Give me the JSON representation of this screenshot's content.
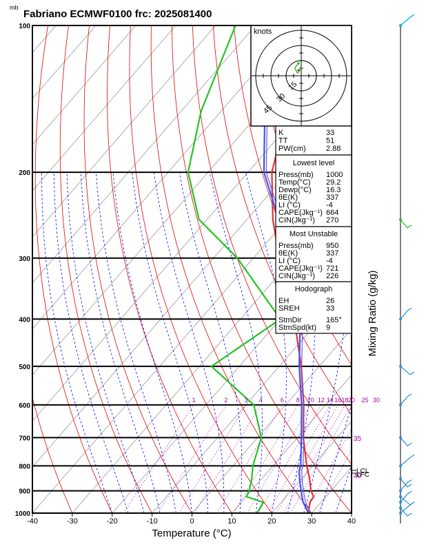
{
  "header": {
    "unit_mb": "mb",
    "title": "Fabriano ECMWF0100  frc: 2025081400"
  },
  "axes": {
    "xlabel": "Temperature (°C)",
    "right_label": "Mixing Ratio (g/kg)",
    "x_ticks": [
      "-40",
      "-30",
      "-20",
      "-10",
      "0",
      "10",
      "20",
      "30",
      "40"
    ],
    "p_ticks": [
      "100",
      "200",
      "300",
      "400",
      "500",
      "600",
      "700",
      "800",
      "900",
      "1000"
    ],
    "mixing_ratio_labels": [
      "1",
      "2",
      "3",
      "4",
      "6",
      "8",
      "10",
      "12",
      "14",
      "16",
      "18",
      "20",
      "25",
      "30"
    ],
    "right_tick_labels": [
      "35",
      "40"
    ],
    "lcl_labels": [
      "LCL",
      "LFC"
    ]
  },
  "hodograph": {
    "units": "knots",
    "ring_labels": [
      "15",
      "30",
      "45"
    ]
  },
  "indices": [
    {
      "k": "K",
      "v": "33"
    },
    {
      "k": "TT",
      "v": "51"
    },
    {
      "k": "PW(cm)",
      "v": "2.88"
    }
  ],
  "lowest_level": {
    "title": "Lowest level",
    "rows": [
      {
        "k": "Press(mb)",
        "v": "1000"
      },
      {
        "k": "Temp(°C)",
        "v": "29.2"
      },
      {
        "k": "Dewp(°C)",
        "v": "16.3"
      },
      {
        "k": "θE(K)",
        "v": "337"
      },
      {
        "k": "LI (°C)",
        "v": "-4"
      },
      {
        "k": "CAPE(Jkg⁻¹)",
        "v": "664"
      },
      {
        "k": "CIN(Jkg⁻¹)",
        "v": "270"
      }
    ]
  },
  "most_unstable": {
    "title": "Most Unstable",
    "rows": [
      {
        "k": "Press(mb)",
        "v": "950"
      },
      {
        "k": "θE(K)",
        "v": "337"
      },
      {
        "k": "LI (°C)",
        "v": "-4"
      },
      {
        "k": "CAPE(Jkg⁻¹)",
        "v": "721"
      },
      {
        "k": "CIN(Jkg⁻¹)",
        "v": "226"
      }
    ]
  },
  "hodograph_stats": {
    "title": "Hodograph",
    "rows": [
      {
        "k": "EH",
        "v": "26"
      },
      {
        "k": "SREH",
        "v": "33"
      },
      {
        "k": "StmDir",
        "v": "165°"
      },
      {
        "k": "StmSpd(kt)",
        "v": "9"
      }
    ]
  },
  "colors": {
    "temperature": "#e83030",
    "dewpoint": "#22c322",
    "parcel": "#3355ff",
    "dry_adiabat": "#e00000",
    "moist_adiabat": "#0000ff",
    "isotherm": "#999999",
    "mixing_ratio": "#a000a0"
  },
  "chart_data": {
    "type": "line",
    "title": "Fabriano ECMWF0100  frc: 2025081400",
    "xlabel": "Temperature (°C)",
    "ylabel": "mb",
    "xlim": [
      -40,
      40
    ],
    "plim": [
      1000,
      100
    ],
    "series": [
      {
        "points": [
          [
            1000,
            29.2
          ],
          [
            950,
            27.2
          ],
          [
            925,
            26.9
          ],
          [
            900,
            25
          ],
          [
            850,
            22
          ],
          [
            800,
            18.5
          ],
          [
            700,
            11.5
          ],
          [
            600,
            4.5
          ],
          [
            500,
            -4.5
          ],
          [
            400,
            -16.5
          ],
          [
            350,
            -25
          ],
          [
            300,
            -33.5
          ],
          [
            250,
            -43.5
          ],
          [
            200,
            -54
          ],
          [
            150,
            -63.5
          ],
          [
            100,
            -72
          ]
        ]
      },
      {
        "points": [
          [
            1000,
            16.3
          ],
          [
            950,
            15.5
          ],
          [
            925,
            10
          ],
          [
            900,
            9.5
          ],
          [
            850,
            7.5
          ],
          [
            800,
            5
          ],
          [
            700,
            1
          ],
          [
            600,
            -8
          ],
          [
            500,
            -27
          ],
          [
            400,
            -20
          ],
          [
            300,
            -44
          ],
          [
            250,
            -62
          ],
          [
            200,
            -75
          ],
          [
            150,
            -85
          ],
          [
            100,
            -95
          ]
        ]
      },
      {
        "points": [
          [
            1000,
            29.2
          ],
          [
            950,
            25.5
          ],
          [
            900,
            22.5
          ],
          [
            850,
            19.5
          ],
          [
            815,
            17.5
          ],
          [
            800,
            17
          ],
          [
            700,
            11
          ],
          [
            600,
            4
          ],
          [
            500,
            -5
          ],
          [
            400,
            -15
          ],
          [
            300,
            -31
          ],
          [
            250,
            -42
          ],
          [
            200,
            -56
          ],
          [
            150,
            -69
          ],
          [
            115,
            -81
          ]
        ]
      }
    ],
    "right_axis_values": [
      35,
      40
    ]
  }
}
